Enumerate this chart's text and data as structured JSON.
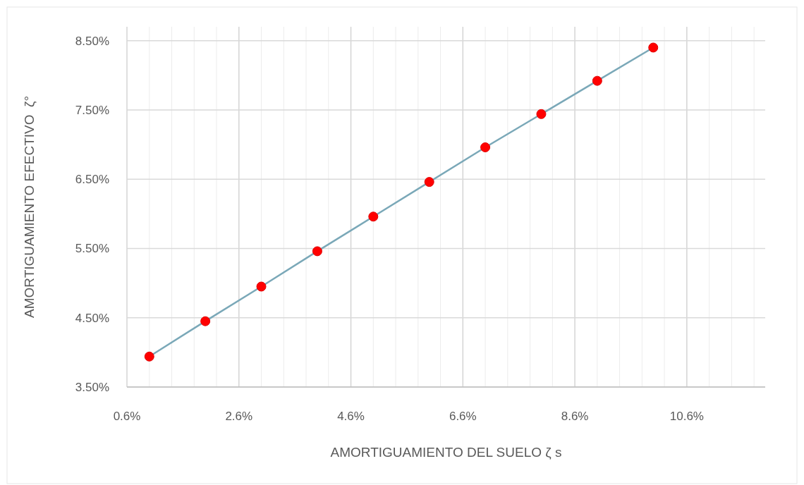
{
  "chart_data": {
    "type": "line",
    "xlabel": "AMORTIGUAMIENTO DEL SUELO ζ s",
    "ylabel": "AMORTIGUAMIENTO EFECTIVO  ζ°",
    "x": [
      1.0,
      2.0,
      3.0,
      4.0,
      5.0,
      6.0,
      7.0,
      8.0,
      9.0,
      10.0
    ],
    "series": [
      {
        "color": "#7aa8b8",
        "values": [
          3.94,
          4.45,
          4.95,
          5.46,
          5.96,
          6.46,
          6.96,
          7.44,
          7.92,
          8.4
        ]
      }
    ],
    "marker": "circle",
    "xlim": [
      0.6,
      12.0
    ],
    "xticks": [
      {
        "value": 0.6,
        "label": "0.6%"
      },
      {
        "value": 1.0,
        "label": null
      },
      {
        "value": 1.4,
        "label": null
      },
      {
        "value": 1.8,
        "label": null
      },
      {
        "value": 2.2,
        "label": null
      },
      {
        "value": 2.6,
        "label": "2.6%"
      },
      {
        "value": 3.0,
        "label": null
      },
      {
        "value": 3.4,
        "label": null
      },
      {
        "value": 3.8,
        "label": null
      },
      {
        "value": 4.2,
        "label": null
      },
      {
        "value": 4.6,
        "label": "4.6%"
      },
      {
        "value": 5.0,
        "label": null
      },
      {
        "value": 5.4,
        "label": null
      },
      {
        "value": 5.8,
        "label": null
      },
      {
        "value": 6.2,
        "label": null
      },
      {
        "value": 6.6,
        "label": "6.6%"
      },
      {
        "value": 7.0,
        "label": null
      },
      {
        "value": 7.4,
        "label": null
      },
      {
        "value": 7.8,
        "label": null
      },
      {
        "value": 8.2,
        "label": null
      },
      {
        "value": 8.6,
        "label": "8.6%"
      },
      {
        "value": 9.0,
        "label": null
      },
      {
        "value": 9.4,
        "label": null
      },
      {
        "value": 9.8,
        "label": null
      },
      {
        "value": 10.2,
        "label": null
      },
      {
        "value": 10.6,
        "label": "10.6%"
      },
      {
        "value": 11.0,
        "label": null
      },
      {
        "value": 11.4,
        "label": null
      },
      {
        "value": 11.8,
        "label": null
      }
    ],
    "ylim": [
      3.5,
      8.7
    ],
    "yticks": [
      {
        "value": 3.5,
        "label": "3.50%"
      },
      {
        "value": 4.5,
        "label": "4.50%"
      },
      {
        "value": 5.5,
        "label": "5.50%"
      },
      {
        "value": 6.5,
        "label": "6.50%"
      },
      {
        "value": 7.5,
        "label": "7.50%"
      },
      {
        "value": 8.5,
        "label": "8.50%"
      }
    ],
    "grid": true
  }
}
